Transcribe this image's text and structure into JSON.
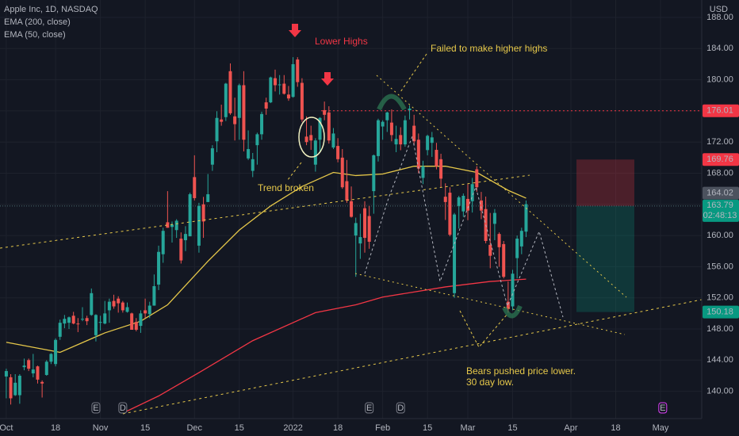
{
  "chart_data": {
    "type": "candlestick",
    "title": "Apple Inc, 1D, NASDAQ",
    "currency": "USD",
    "up_color": "#26a69a",
    "down_color": "#ef5350",
    "grid": true,
    "xlim": [
      -1.4,
      155.2
    ],
    "ylim": [
      136.5,
      190.24
    ],
    "xticks": [
      {
        "value": 0,
        "label": "Oct"
      },
      {
        "value": 11,
        "label": "18"
      },
      {
        "value": 21,
        "label": "Nov"
      },
      {
        "value": 31,
        "label": "15"
      },
      {
        "value": 42,
        "label": "Dec"
      },
      {
        "value": 52,
        "label": "15"
      },
      {
        "value": 64,
        "label": "2022"
      },
      {
        "value": 74,
        "label": "18"
      },
      {
        "value": 84,
        "label": "Feb"
      },
      {
        "value": 94,
        "label": "15"
      },
      {
        "value": 103,
        "label": "Mar"
      },
      {
        "value": 113,
        "label": "15"
      },
      {
        "value": 126,
        "label": "Apr"
      },
      {
        "value": 136,
        "label": "18"
      },
      {
        "value": 146,
        "label": "May"
      }
    ],
    "yticks": [
      {
        "value": 140,
        "label": "140.00"
      },
      {
        "value": 144,
        "label": "144.00"
      },
      {
        "value": 148,
        "label": "148.00"
      },
      {
        "value": 152,
        "label": "152.00"
      },
      {
        "value": 156,
        "label": "156.00"
      },
      {
        "value": 160,
        "label": "160.00"
      },
      {
        "value": 164,
        "label": "164.00"
      },
      {
        "value": 168,
        "label": "168.00"
      },
      {
        "value": 172,
        "label": "172.00"
      },
      {
        "value": 176,
        "label": "176.00"
      },
      {
        "value": 180,
        "label": "180.00"
      },
      {
        "value": 184,
        "label": "184.00"
      },
      {
        "value": 188,
        "label": "188.00"
      }
    ],
    "open": [
      141.9,
      141.8,
      139.5,
      139.5,
      143.1,
      144.0,
      142.3,
      143.2,
      141.2,
      142.1,
      143.8,
      143.5,
      147.0,
      148.7,
      148.8,
      149.7,
      148.7,
      149.3,
      149.4,
      149.8,
      147.2,
      148.9,
      148.7,
      150.4,
      151.6,
      151.9,
      151.4,
      150.2,
      150.0,
      148.9,
      148.4,
      150.4,
      149.9,
      151.0,
      153.7,
      157.6,
      161.7,
      161.1,
      160.7,
      159.6,
      159.4,
      159.9,
      167.5,
      158.7,
      164.0,
      164.3,
      169.1,
      172.1,
      174.9,
      175.2,
      181.1,
      175.3,
      175.1,
      179.3,
      169.9,
      168.3,
      171.6,
      173.0,
      177.1,
      177.1,
      180.2,
      179.3,
      179.5,
      178.1,
      177.8,
      182.6,
      179.6,
      172.7,
      172.9,
      169.1,
      172.3,
      176.1,
      175.8,
      171.3,
      171.5,
      170.0,
      166.98,
      164.4,
      160.0,
      158.98,
      163.5,
      162.5,
      165.7,
      170.2,
      174.0,
      174.8,
      174.5,
      171.7,
      172.9,
      171.7,
      176.1,
      174.1,
      172.3,
      167.4,
      170.97,
      171.9,
      171.0,
      169.8,
      164.98,
      165.5,
      152.6,
      163.8,
      163.1,
      164.7,
      164.4,
      168.5,
      164.5,
      163.4,
      158.8,
      161.5,
      160.2,
      158.9,
      151.5,
      150.9,
      157.1,
      158.6,
      160.5
    ],
    "high": [
      142.9,
      142.2,
      142.2,
      142.2,
      144.2,
      144.2,
      144.8,
      143.3,
      141.4,
      144.0,
      144.9,
      146.8,
      149.2,
      149.8,
      149.6,
      150.2,
      149.4,
      150.8,
      149.7,
      153.2,
      149.9,
      149.7,
      151.6,
      151.9,
      152.4,
      152.2,
      151.6,
      151.4,
      150.1,
      149.4,
      150.4,
      151.9,
      151.5,
      155.0,
      158.7,
      161.0,
      165.7,
      161.8,
      162.1,
      160.4,
      161.2,
      165.5,
      170.3,
      164.2,
      164.96,
      167.9,
      171.6,
      175.96,
      176.8,
      179.6,
      182.1,
      177.7,
      179.5,
      181.1,
      173.5,
      170.6,
      173.2,
      175.9,
      177.7,
      180.4,
      181.3,
      180.6,
      180.6,
      179.2,
      182.9,
      182.9,
      180.2,
      175.3,
      174.1,
      172.5,
      175.2,
      177.2,
      176.6,
      173.8,
      172.5,
      171.1,
      169.7,
      166.3,
      162.3,
      162.8,
      164.4,
      163.8,
      170.4,
      175.0,
      174.8,
      175.9,
      176.2,
      174.1,
      173.9,
      175.4,
      176.7,
      175.5,
      173.1,
      169.6,
      172.95,
      173.3,
      171.9,
      170.5,
      166.7,
      166.2,
      162.9,
      165.1,
      165.4,
      166.6,
      167.4,
      168.9,
      165.6,
      165.0,
      162.9,
      163.4,
      160.4,
      159.3,
      154.1,
      155.6,
      160.0,
      161.0,
      164.5
    ],
    "low": [
      139.1,
      138.3,
      139.4,
      138.4,
      142.7,
      142.6,
      141.8,
      141.0,
      139.2,
      142.0,
      143.5,
      143.2,
      146.6,
      148.1,
      148.0,
      148.6,
      147.6,
      149.0,
      148.5,
      149.7,
      146.4,
      147.8,
      148.6,
      148.8,
      150.6,
      150.1,
      150.1,
      150.1,
      147.9,
      147.7,
      147.5,
      149.4,
      149.4,
      150.99,
      153.0,
      156.5,
      161.0,
      159.1,
      159.7,
      156.4,
      158.0,
      159.9,
      164.5,
      157.8,
      159.7,
      164.3,
      168.3,
      170.7,
      174.1,
      174.7,
      175.5,
      172.2,
      172.3,
      170.8,
      169.7,
      167.5,
      169.1,
      172.3,
      175.5,
      177.0,
      178.5,
      178.1,
      178.1,
      177.3,
      177.7,
      179.1,
      174.6,
      171.6,
      171.0,
      168.2,
      170.8,
      174.8,
      171.8,
      171.1,
      169.4,
      166.0,
      164.2,
      162.3,
      154.7,
      157.0,
      157.8,
      158.3,
      162.8,
      169.5,
      172.3,
      173.3,
      172.1,
      170.7,
      170.95,
      171.4,
      174.9,
      171.6,
      168.0,
      166.6,
      170.3,
      170.1,
      168.5,
      166.2,
      162.0,
      159.9,
      152.0,
      160.9,
      162.4,
      161.97,
      162.95,
      165.6,
      162.1,
      159.0,
      155.8,
      159.4,
      155.98,
      154.5,
      150.1,
      150.4,
      154.5,
      157.6,
      159.8
    ],
    "close": [
      142.6,
      139.1,
      141.1,
      142.0,
      143.3,
      142.9,
      142.8,
      141.5,
      141.0,
      143.8,
      144.8,
      146.6,
      148.8,
      149.3,
      149.5,
      148.7,
      148.6,
      149.3,
      149.0,
      152.6,
      149.8,
      148.9,
      150.0,
      151.5,
      150.9,
      151.3,
      150.4,
      150.8,
      147.9,
      147.9,
      150.0,
      150.0,
      151.0,
      153.5,
      157.9,
      160.6,
      161.0,
      161.4,
      161.9,
      156.8,
      160.2,
      165.3,
      164.8,
      163.8,
      161.8,
      165.3,
      171.2,
      175.1,
      174.6,
      179.5,
      175.7,
      174.3,
      179.3,
      172.3,
      171.1,
      169.8,
      173.0,
      175.6,
      176.3,
      180.3,
      179.3,
      179.4,
      178.2,
      177.6,
      182.0,
      179.7,
      174.9,
      172.0,
      172.2,
      172.2,
      175.1,
      175.5,
      172.2,
      173.1,
      169.8,
      166.2,
      164.5,
      162.4,
      161.6,
      159.8,
      159.7,
      159.2,
      170.3,
      174.8,
      174.6,
      175.8,
      172.9,
      172.4,
      171.7,
      174.8,
      176.3,
      172.1,
      168.6,
      168.9,
      172.8,
      172.6,
      168.9,
      167.3,
      164.3,
      160.1,
      162.7,
      164.9,
      165.1,
      163.2,
      166.6,
      166.2,
      163.2,
      159.3,
      157.4,
      162.9,
      158.5,
      154.7,
      150.6,
      155.1,
      159.6,
      160.6,
      164.02
    ],
    "lines": [
      {
        "name": "EMA (200, close)",
        "color": "#f23645",
        "x": [
          26,
          34,
          43,
          55,
          69,
          78,
          84,
          98,
          108,
          116
        ],
        "values": [
          137.2,
          139.4,
          142.4,
          146.5,
          150.1,
          151.1,
          152.1,
          153.4,
          154.1,
          154.4
        ]
      },
      {
        "name": "EMA (50, close)",
        "color": "#e6c84a",
        "x": [
          0,
          12,
          22,
          30,
          36,
          45,
          52,
          59,
          66,
          73,
          78,
          84,
          91,
          98,
          105,
          112,
          116
        ],
        "values": [
          146.3,
          145.0,
          147.5,
          149.0,
          151.1,
          156.7,
          160.7,
          163.8,
          166.3,
          168.1,
          167.7,
          167.9,
          168.9,
          168.9,
          168.1,
          165.8,
          164.8
        ]
      }
    ],
    "hline": {
      "value": 176.01,
      "color": "#f23645"
    },
    "position": {
      "stop": 169.76,
      "entry": 163.79,
      "target": 150.18
    },
    "countdown": "02:48:13",
    "events": {
      "labels": [
        "E",
        "D",
        "E",
        "D",
        "E"
      ],
      "x": [
        20,
        26,
        81,
        88,
        146.5
      ],
      "colors": [
        "#787b86",
        "#787b86",
        "#787b86",
        "#787b86",
        "#e040fb"
      ]
    },
    "annotations": [
      "Lower Highs",
      "Failed to make higher highs",
      "Trend broken",
      "Bears pushed price lower. 30 day low."
    ]
  }
}
